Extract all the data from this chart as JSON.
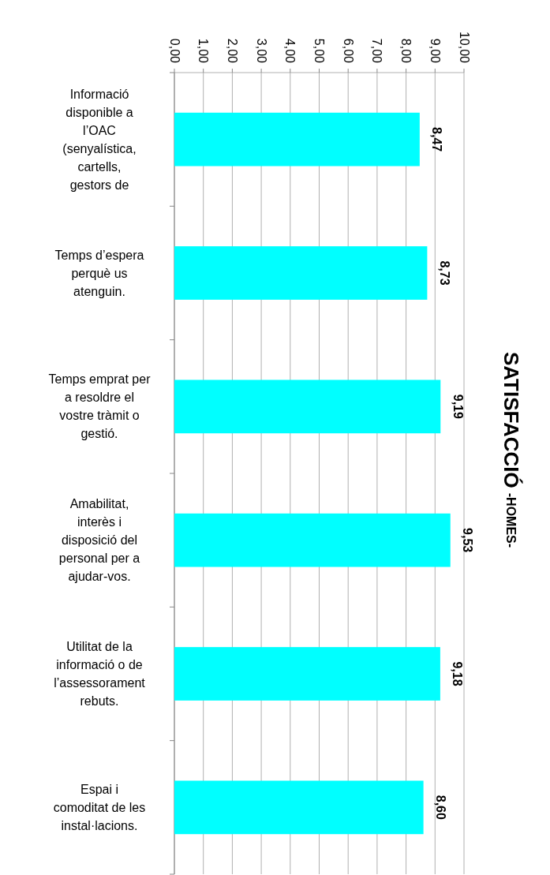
{
  "chart_data": {
    "type": "bar",
    "orientation": "horizontal",
    "title": "SATISFACCIÓ",
    "subtitle": "-HOMES-",
    "categories": [
      "Informació disponible a l’OAC (senyalística, cartells, gestors de",
      "Temps d’espera perquè us atenguin.",
      "Temps emprat per a resoldre el vostre tràmit o gestió.",
      "Amabilitat, interès i disposició del personal per a ajudar-vos.",
      "Utilitat de la informació o de l’assessorament rebuts.",
      "Espai i comoditat de les instal·lacions."
    ],
    "values": [
      8.47,
      8.73,
      9.19,
      9.53,
      9.18,
      8.6
    ],
    "value_labels": [
      "8,47",
      "8,73",
      "9,19",
      "9,53",
      "9,18",
      "8,60"
    ],
    "color": "#00ffff",
    "xlim": [
      0,
      10
    ],
    "xticks": [
      {
        "value": 0,
        "label": "0,00"
      },
      {
        "value": 1,
        "label": "1,00"
      },
      {
        "value": 2,
        "label": "2,00"
      },
      {
        "value": 3,
        "label": "3,00"
      },
      {
        "value": 4,
        "label": "4,00"
      },
      {
        "value": 5,
        "label": "5,00"
      },
      {
        "value": 6,
        "label": "6,00"
      },
      {
        "value": 7,
        "label": "7,00"
      },
      {
        "value": 8,
        "label": "8,00"
      },
      {
        "value": 9,
        "label": "9,00"
      },
      {
        "value": 10,
        "label": "10,00"
      }
    ],
    "grid": "x"
  }
}
